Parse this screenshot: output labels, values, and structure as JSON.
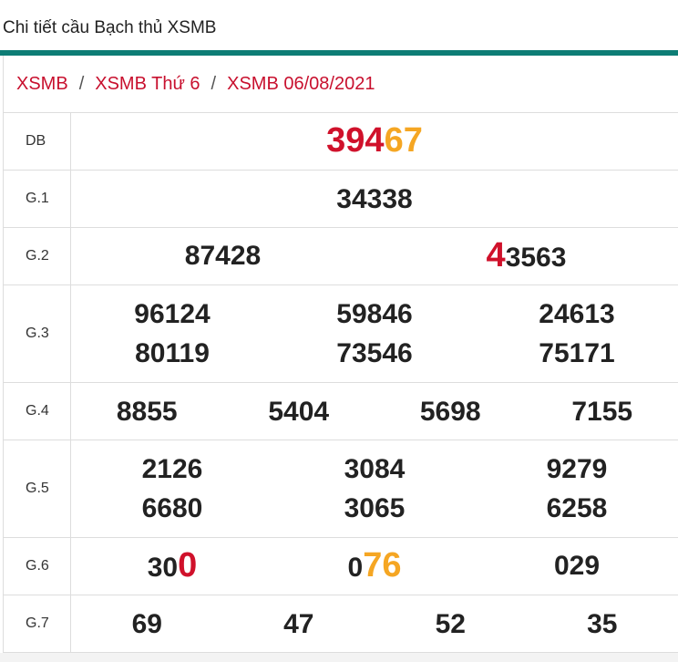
{
  "header": {
    "title": "Chi tiết cầu Bạch thủ XSMB"
  },
  "breadcrumb": {
    "items": [
      "XSMB",
      "XSMB Thứ 6",
      "XSMB 06/08/2021"
    ],
    "separator": "/"
  },
  "table": {
    "rows": [
      {
        "label": "DB",
        "columns": 1,
        "values": [
          [
            {
              "text": "394",
              "color": "#d0112b"
            },
            {
              "text": "67",
              "color": "#f5a623"
            }
          ]
        ]
      },
      {
        "label": "G.1",
        "columns": 1,
        "values": [
          "34338"
        ]
      },
      {
        "label": "G.2",
        "columns": 2,
        "values": [
          "87428",
          [
            {
              "text": "4",
              "color": "#d0112b"
            },
            {
              "text": "3563"
            }
          ]
        ]
      },
      {
        "label": "G.3",
        "columns": 3,
        "values": [
          "96124",
          "59846",
          "24613",
          "80119",
          "73546",
          "75171"
        ]
      },
      {
        "label": "G.4",
        "columns": 4,
        "values": [
          "8855",
          "5404",
          "5698",
          "7155"
        ]
      },
      {
        "label": "G.5",
        "columns": 3,
        "values": [
          "2126",
          "3084",
          "9279",
          "6680",
          "3065",
          "6258"
        ]
      },
      {
        "label": "G.6",
        "columns": 3,
        "values": [
          [
            {
              "text": "30"
            },
            {
              "text": "0",
              "color": "#d0112b"
            }
          ],
          [
            {
              "text": "0"
            },
            {
              "text": "76",
              "color": "#f5a623"
            }
          ],
          "029"
        ]
      },
      {
        "label": "G.7",
        "columns": 4,
        "values": [
          "69",
          "47",
          "52",
          "35"
        ]
      }
    ]
  }
}
